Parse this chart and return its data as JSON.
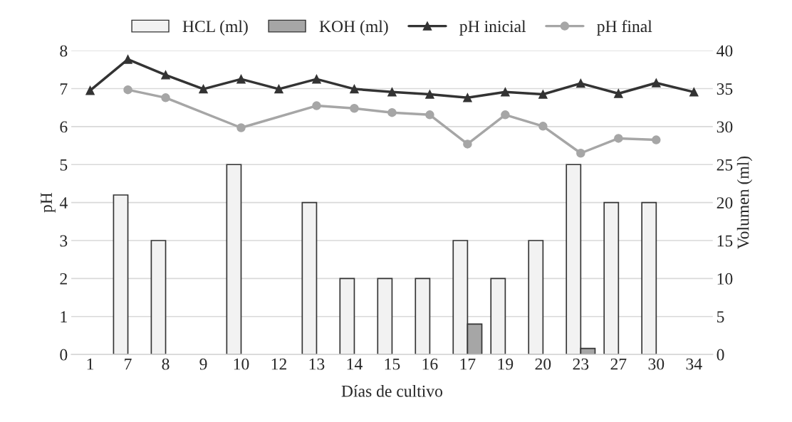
{
  "chart_data": {
    "type": "bar",
    "xlabel": "Días de cultivo",
    "ylabel": "pH",
    "y2label": "Volumen (ml)",
    "categories": [
      "1",
      "7",
      "8",
      "9",
      "10",
      "12",
      "13",
      "14",
      "15",
      "16",
      "17",
      "19",
      "20",
      "23",
      "27",
      "30",
      "34"
    ],
    "series": [
      {
        "name": "HCL (ml)",
        "axis": "y2",
        "color": "#f2f2f2",
        "values": [
          null,
          21,
          15,
          null,
          25,
          null,
          20,
          10,
          10,
          10,
          15,
          10,
          15,
          25,
          20,
          20,
          null
        ]
      },
      {
        "name": "KOH (ml)",
        "axis": "y2",
        "color": "#a6a6a6",
        "values": [
          null,
          null,
          null,
          null,
          null,
          null,
          null,
          null,
          null,
          null,
          4,
          null,
          null,
          0.8,
          null,
          null,
          null
        ]
      },
      {
        "name": "pH inicial",
        "type": "line",
        "color": "#333333",
        "marker": "triangle",
        "values": [
          6.95,
          7.77,
          7.36,
          6.99,
          7.25,
          6.99,
          7.25,
          6.99,
          6.91,
          6.85,
          6.76,
          6.91,
          6.85,
          7.14,
          6.87,
          7.15,
          6.91
        ]
      },
      {
        "name": "pH final",
        "type": "line",
        "color": "#a6a6a6",
        "marker": "circle",
        "values": [
          null,
          6.97,
          6.76,
          null,
          5.97,
          null,
          6.55,
          6.48,
          6.37,
          6.31,
          5.54,
          6.31,
          6.01,
          5.3,
          5.69,
          5.65,
          null
        ]
      }
    ],
    "ylim": [
      0,
      8
    ],
    "yticks": [
      0,
      1,
      2,
      3,
      4,
      5,
      6,
      7,
      8
    ],
    "y2lim": [
      0,
      40
    ],
    "y2ticks": [
      0,
      5,
      10,
      15,
      20,
      25,
      30,
      35,
      40
    ],
    "grid": "y",
    "legend": "top"
  }
}
